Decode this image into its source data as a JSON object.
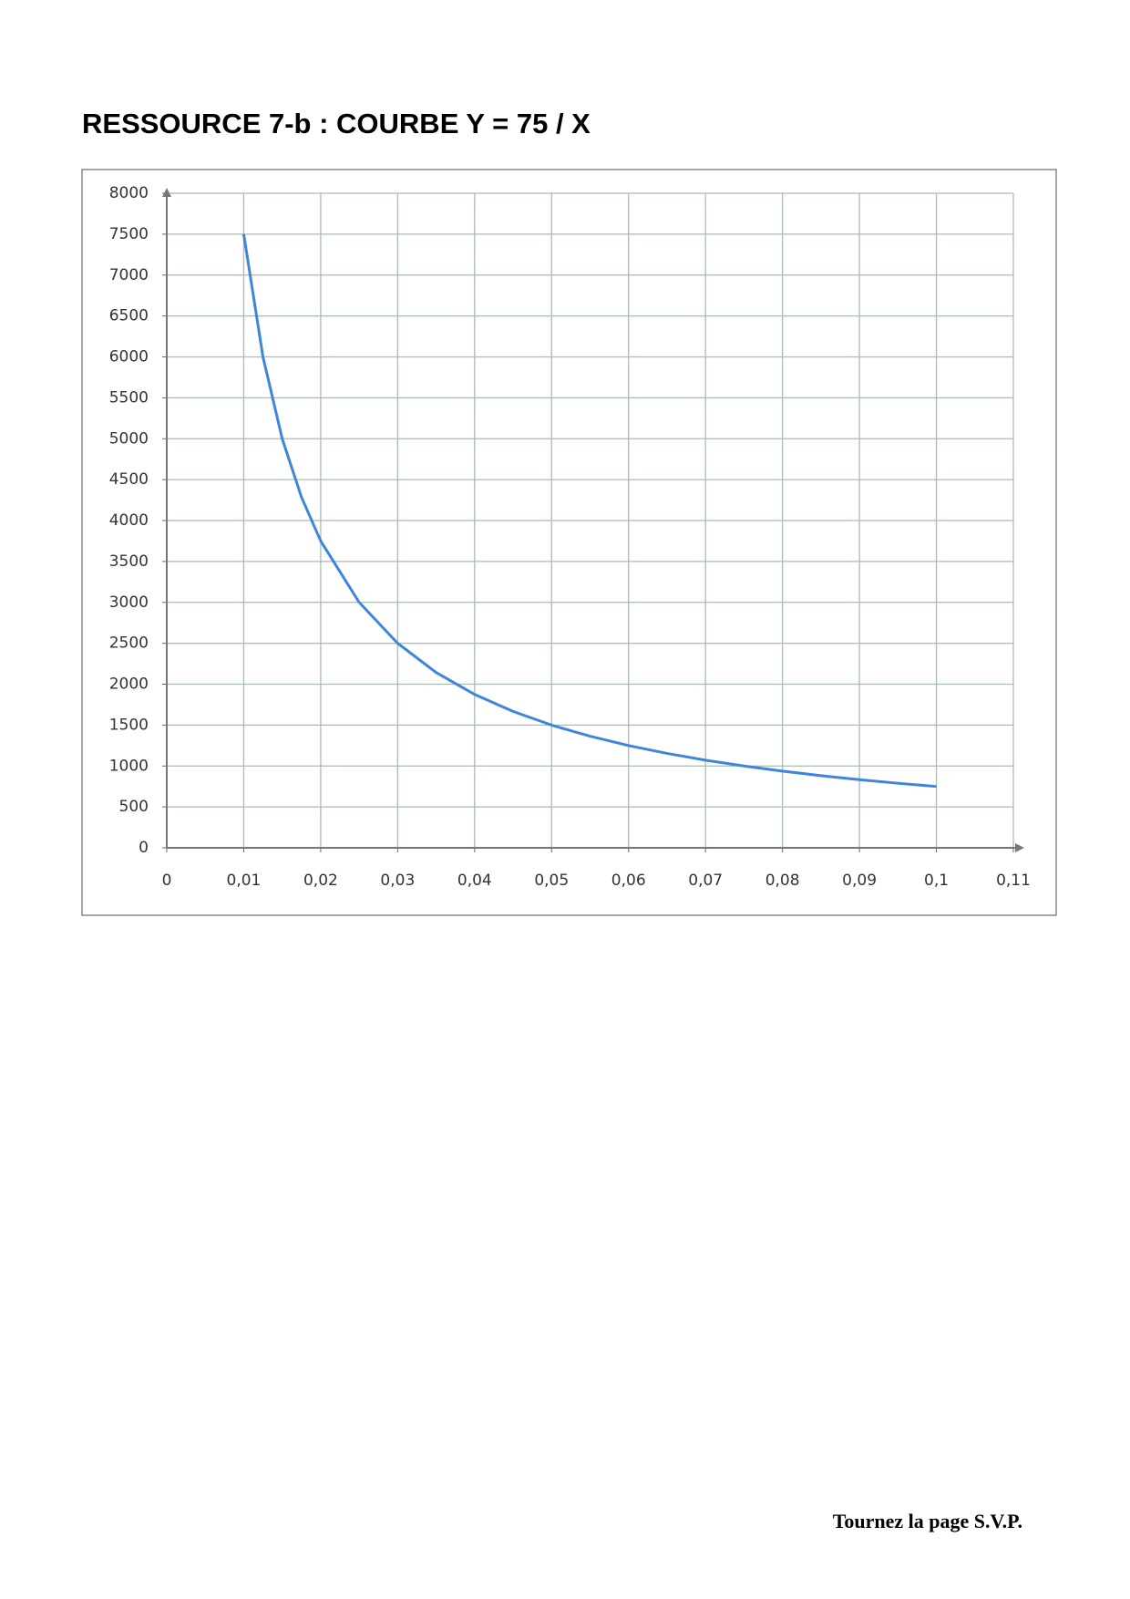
{
  "chart_data": {
    "type": "line",
    "title": "RESSOURCE 7-b : COURBE Y = 75 / X",
    "x": [
      0.01,
      0.0125,
      0.015,
      0.0175,
      0.02,
      0.025,
      0.03,
      0.035,
      0.04,
      0.045,
      0.05,
      0.055,
      0.06,
      0.065,
      0.07,
      0.075,
      0.08,
      0.085,
      0.09,
      0.095,
      0.1
    ],
    "series": [
      {
        "color": "#3d86dc",
        "values": [
          7500,
          6000,
          5000,
          4286,
          3750,
          3000,
          2500,
          2143,
          1875,
          1667,
          1500,
          1364,
          1250,
          1154,
          1071,
          1000,
          937.5,
          882,
          833,
          789,
          750
        ]
      }
    ],
    "xlim": [
      0,
      0.11
    ],
    "ylim": [
      0,
      8000
    ],
    "xticks": [
      0,
      {
        "value": 0.01,
        "label": "0,01"
      },
      {
        "value": 0.02,
        "label": "0,02"
      },
      {
        "value": 0.03,
        "label": "0,03"
      },
      {
        "value": 0.04,
        "label": "0,04"
      },
      {
        "value": 0.05,
        "label": "0,05"
      },
      {
        "value": 0.06,
        "label": "0,06"
      },
      {
        "value": 0.07,
        "label": "0,07"
      },
      {
        "value": 0.08,
        "label": "0,08"
      },
      {
        "value": 0.09,
        "label": "0,09"
      },
      {
        "value": 0.1,
        "label": "0,1"
      },
      {
        "value": 0.11,
        "label": "0,11"
      }
    ],
    "yticks": [
      0,
      500,
      1000,
      1500,
      2000,
      2500,
      3000,
      3500,
      4000,
      4500,
      5000,
      5500,
      6000,
      6500,
      7000,
      7500,
      8000
    ],
    "grid": true
  },
  "footer": "Tournez la page S.V.P."
}
